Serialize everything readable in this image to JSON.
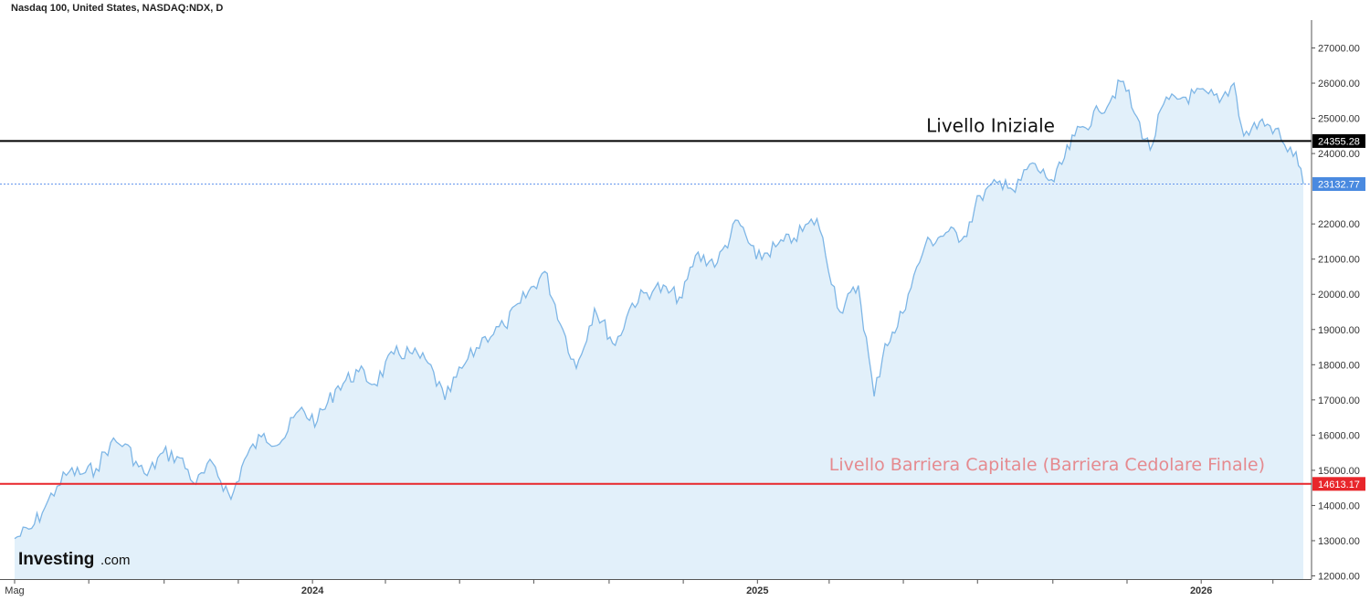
{
  "chart_data": {
    "type": "area",
    "title": "Nasdaq 100, United States, NASDAQ:NDX, D",
    "logo": {
      "main": "Investing",
      "sub": ".com"
    },
    "x_axis": {
      "labels": [
        "Mag",
        "2024",
        "2025",
        "2026"
      ]
    },
    "y_axis": {
      "ticks": [
        "27000.00",
        "26000.00",
        "25000.00",
        "24000.00",
        "22000.00",
        "21000.00",
        "20000.00",
        "19000.00",
        "18000.00",
        "17000.00",
        "16000.00",
        "15000.00",
        "14000.00",
        "13000.00",
        "12000.00"
      ],
      "ylim": [
        12000,
        27000
      ]
    },
    "series": [
      {
        "color": "#7eb6e6",
        "fill": "#e2f0fa",
        "points": [
          [
            "2023-05-01",
            13060
          ],
          [
            "2023-05-15",
            13350
          ],
          [
            "2023-05-26",
            13950
          ],
          [
            "2023-06-05",
            14550
          ],
          [
            "2023-06-15",
            14960
          ],
          [
            "2023-06-26",
            14900
          ],
          [
            "2023-07-07",
            15050
          ],
          [
            "2023-07-19",
            15780
          ],
          [
            "2023-07-31",
            15750
          ],
          [
            "2023-08-11",
            15100
          ],
          [
            "2023-08-18",
            14850
          ],
          [
            "2023-08-31",
            15500
          ],
          [
            "2023-09-14",
            15350
          ],
          [
            "2023-09-27",
            14600
          ],
          [
            "2023-10-11",
            15200
          ],
          [
            "2023-10-26",
            14180
          ],
          [
            "2023-11-06",
            15300
          ],
          [
            "2023-11-20",
            15950
          ],
          [
            "2023-12-07",
            15850
          ],
          [
            "2023-12-21",
            16700
          ],
          [
            "2024-01-05",
            16400
          ],
          [
            "2024-01-22",
            17400
          ],
          [
            "2024-02-08",
            17800
          ],
          [
            "2024-02-21",
            17450
          ],
          [
            "2024-03-08",
            18300
          ],
          [
            "2024-03-21",
            18350
          ],
          [
            "2024-04-05",
            18050
          ],
          [
            "2024-04-19",
            17000
          ],
          [
            "2024-05-03",
            17900
          ],
          [
            "2024-05-22",
            18800
          ],
          [
            "2024-06-07",
            19100
          ],
          [
            "2024-06-20",
            19750
          ],
          [
            "2024-07-10",
            20650
          ],
          [
            "2024-07-25",
            19000
          ],
          [
            "2024-08-05",
            17900
          ],
          [
            "2024-08-20",
            19600
          ],
          [
            "2024-09-06",
            18550
          ],
          [
            "2024-09-20",
            19750
          ],
          [
            "2024-10-09",
            20200
          ],
          [
            "2024-10-31",
            19900
          ],
          [
            "2024-11-11",
            21100
          ],
          [
            "2024-11-29",
            20900
          ],
          [
            "2024-12-16",
            22100
          ],
          [
            "2024-12-31",
            21000
          ],
          [
            "2025-01-16",
            21350
          ],
          [
            "2025-01-31",
            21600
          ],
          [
            "2025-02-19",
            22150
          ],
          [
            "2025-03-10",
            19500
          ],
          [
            "2025-03-25",
            20250
          ],
          [
            "2025-04-07",
            17100
          ],
          [
            "2025-04-16",
            18600
          ],
          [
            "2025-04-24",
            18900
          ],
          [
            "2025-05-05",
            20000
          ],
          [
            "2025-05-19",
            21400
          ],
          [
            "2025-06-05",
            21750
          ],
          [
            "2025-06-20",
            21650
          ],
          [
            "2025-07-03",
            22800
          ],
          [
            "2025-07-24",
            23250
          ],
          [
            "2025-08-01",
            22900
          ],
          [
            "2025-08-13",
            23700
          ],
          [
            "2025-09-02",
            23200
          ],
          [
            "2025-09-19",
            24500
          ],
          [
            "2025-10-09",
            25200
          ],
          [
            "2025-10-29",
            26050
          ],
          [
            "2025-11-07",
            25150
          ],
          [
            "2025-11-20",
            24100
          ],
          [
            "2025-12-01",
            25400
          ],
          [
            "2025-12-17",
            25600
          ],
          [
            "2026-01-07",
            25700
          ],
          [
            "2026-01-16",
            25450
          ],
          [
            "2026-01-28",
            26000
          ],
          [
            "2026-02-05",
            24500
          ],
          [
            "2026-02-18",
            24900
          ],
          [
            "2026-03-03",
            24700
          ],
          [
            "2026-03-13",
            24050
          ],
          [
            "2026-03-20",
            24050
          ],
          [
            "2026-03-26",
            23132.77
          ]
        ]
      }
    ],
    "horizontal_lines": [
      {
        "value": 24355.28,
        "label": "24355.28",
        "color": "#000000",
        "style": "solid",
        "annotation": "Livello Iniziale"
      },
      {
        "value": 23132.77,
        "label": "23132.77",
        "color": "#6495ed",
        "style": "dotted",
        "annotation": ""
      },
      {
        "value": 14613.17,
        "label": "14613.17",
        "color": "#e8262b",
        "style": "solid",
        "annotation": "Livello Barriera Capitale (Barriera Cedolare Finale)"
      }
    ],
    "grid": false,
    "legend": "none"
  }
}
